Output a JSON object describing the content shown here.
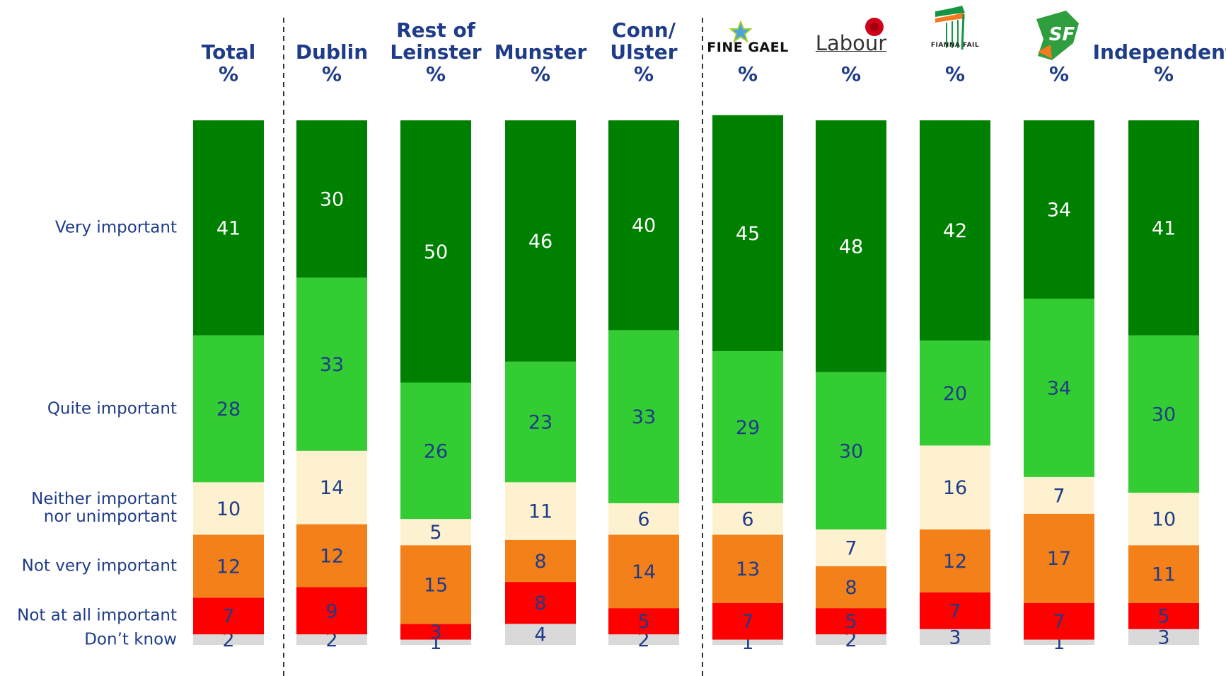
{
  "chart_data": {
    "type": "stacked-bar",
    "categories": [
      "Total",
      "Dublin",
      "Rest of\nLeinster",
      "Munster",
      "Conn/\nUlster",
      "FINE GAEL",
      "Labour",
      "FIANNA FAIL",
      "SF",
      "Independent"
    ],
    "unit": "%",
    "series": [
      {
        "name": "Don’t know",
        "color": "#d9d9d9",
        "values": [
          2,
          2,
          1,
          4,
          2,
          1,
          2,
          3,
          1,
          3
        ]
      },
      {
        "name": "Not at all important",
        "color": "#ff0000",
        "values": [
          7,
          9,
          3,
          8,
          5,
          7,
          5,
          7,
          7,
          5
        ]
      },
      {
        "name": "Not very important",
        "color": "#f4801a",
        "values": [
          12,
          12,
          15,
          8,
          14,
          13,
          8,
          12,
          17,
          11
        ]
      },
      {
        "name": "Neither important\nnor unimportant",
        "color": "#fdf1d0",
        "values": [
          10,
          14,
          5,
          11,
          6,
          6,
          7,
          16,
          7,
          10
        ]
      },
      {
        "name": "Quite important",
        "color": "#33cc33",
        "values": [
          28,
          33,
          26,
          23,
          33,
          29,
          30,
          20,
          34,
          30
        ]
      },
      {
        "name": "Very important",
        "color": "#008000",
        "values": [
          41,
          30,
          50,
          46,
          40,
          45,
          48,
          42,
          34,
          41
        ]
      }
    ],
    "ylim": [
      0,
      100
    ]
  }
}
